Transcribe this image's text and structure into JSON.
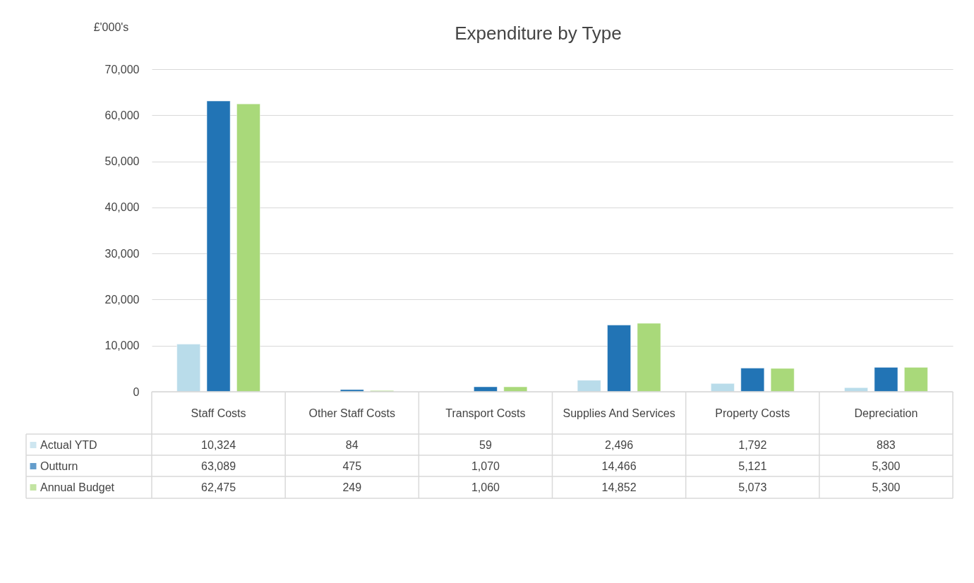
{
  "chart_data": {
    "type": "bar",
    "title": "Expenditure by Type",
    "ylabel": "£'000's",
    "categories": [
      "Staff Costs",
      "Other Staff Costs",
      "Transport Costs",
      "Supplies And Services",
      "Property Costs",
      "Depreciation"
    ],
    "series": [
      {
        "name": "Actual YTD",
        "color": "#b9dcea",
        "values": [
          10324,
          84,
          59,
          2496,
          1792,
          883
        ],
        "value_labels": [
          "10,324",
          "84",
          "59",
          "2,496",
          "1,792",
          "883"
        ]
      },
      {
        "name": "Outturn",
        "color": "#2274b5",
        "values": [
          63089,
          475,
          1070,
          14466,
          5121,
          5300
        ],
        "value_labels": [
          "63,089",
          "475",
          "1,070",
          "14,466",
          "5,121",
          "5,300"
        ]
      },
      {
        "name": "Annual Budget",
        "color": "#a9d97a",
        "values": [
          62475,
          249,
          1060,
          14852,
          5073,
          5300
        ],
        "value_labels": [
          "62,475",
          "249",
          "1,060",
          "14,852",
          "5,073",
          "5,300"
        ]
      }
    ],
    "ylim": [
      0,
      70000
    ],
    "yticks": [
      0,
      {
        "value": 10000,
        "label": "10,000"
      },
      {
        "value": 20000,
        "label": "20,000"
      },
      {
        "value": 30000,
        "label": "30,000"
      },
      {
        "value": 40000,
        "label": "40,000"
      },
      {
        "value": 50000,
        "label": "50,000"
      },
      {
        "value": 60000,
        "label": "60,000"
      },
      {
        "value": 70000,
        "label": "70,000"
      }
    ],
    "grid": "y",
    "legend": "bottom"
  }
}
